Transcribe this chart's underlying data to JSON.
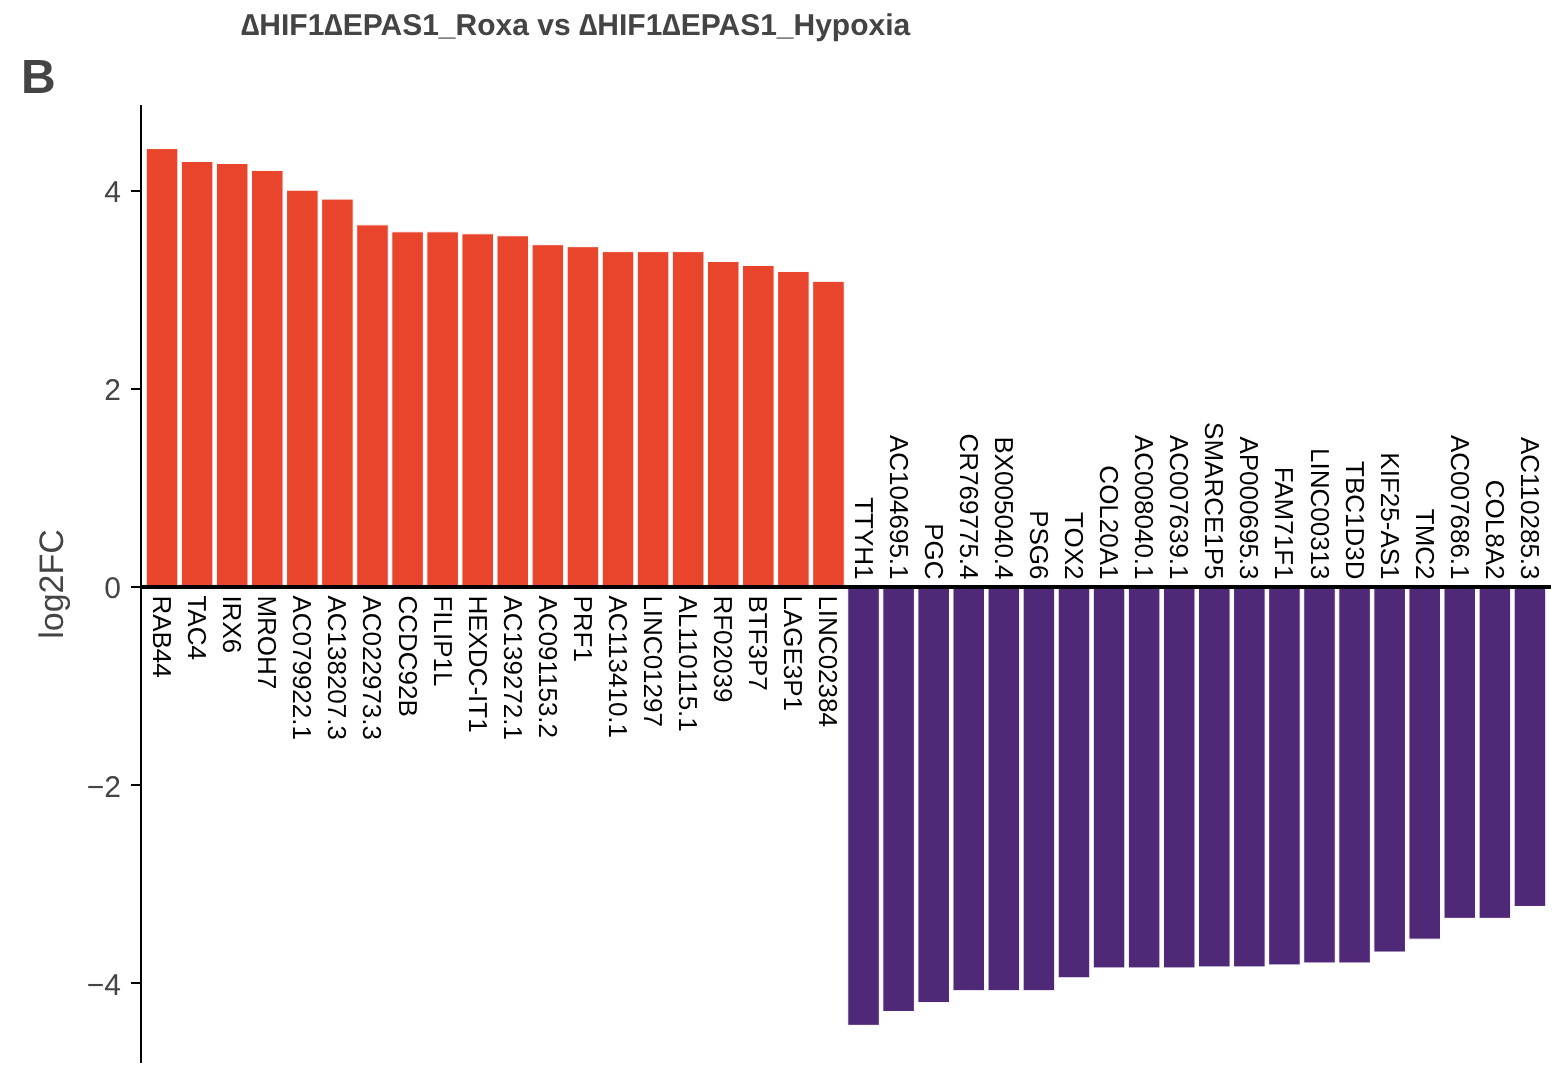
{
  "chart_data": {
    "type": "bar",
    "title": "∆HIF1∆EPAS1_Roxa vs ∆HIF1∆EPAS1_Hypoxia",
    "ylabel": "log2FC",
    "annotations": [
      "B"
    ],
    "categories": [
      "RAB44",
      "TAC4",
      "IRX6",
      "MROH7",
      "AC079922.1",
      "AC138207.3",
      "AC022973.3",
      "CCDC92B",
      "FILIP1L",
      "HEXDC-IT1",
      "AC139272.1",
      "AC091153.2",
      "PRF1",
      "AC113410.1",
      "LINC01297",
      "AL110115.1",
      "RF02039",
      "BTF3P7",
      "LAGE3P1",
      "LINC02384",
      "TTYH1",
      "AC104695.1",
      "PGC",
      "CR769775.4",
      "BX005040.4",
      "PSG6",
      "TOX2",
      "COL20A1",
      "AC008040.1",
      "AC007639.1",
      "SMARCE1P5",
      "AP000695.3",
      "FAM71F1",
      "LINC00313",
      "TBC1D3D",
      "KIF25-AS1",
      "TMC2",
      "AC007686.1",
      "COL8A2",
      "AC110285.3"
    ],
    "values": [
      4.43,
      4.3,
      4.28,
      4.21,
      4.01,
      3.92,
      3.66,
      3.59,
      3.59,
      3.57,
      3.55,
      3.46,
      3.44,
      3.39,
      3.39,
      3.39,
      3.29,
      3.25,
      3.19,
      3.09,
      -4.42,
      -4.28,
      -4.19,
      -4.07,
      -4.07,
      -4.07,
      -3.94,
      -3.84,
      -3.84,
      -3.84,
      -3.83,
      -3.83,
      -3.81,
      -3.79,
      -3.79,
      -3.68,
      -3.55,
      -3.34,
      -3.34,
      -3.22
    ],
    "colors": [
      "#e8452c",
      "#e8452c",
      "#e8452c",
      "#e8452c",
      "#e8452c",
      "#e8452c",
      "#e8452c",
      "#e8452c",
      "#e8452c",
      "#e8452c",
      "#e8452c",
      "#e8452c",
      "#e8452c",
      "#e8452c",
      "#e8452c",
      "#e8452c",
      "#e8452c",
      "#e8452c",
      "#e8452c",
      "#e8452c",
      "#4f2878",
      "#4f2878",
      "#4f2878",
      "#4f2878",
      "#4f2878",
      "#4f2878",
      "#4f2878",
      "#4f2878",
      "#4f2878",
      "#4f2878",
      "#4f2878",
      "#4f2878",
      "#4f2878",
      "#4f2878",
      "#4f2878",
      "#4f2878",
      "#4f2878",
      "#4f2878",
      "#4f2878",
      "#4f2878"
    ],
    "ylim": [
      -4.8,
      4.87
    ],
    "yticks": [
      -4,
      -2,
      0,
      2,
      4
    ],
    "grid": false
  }
}
